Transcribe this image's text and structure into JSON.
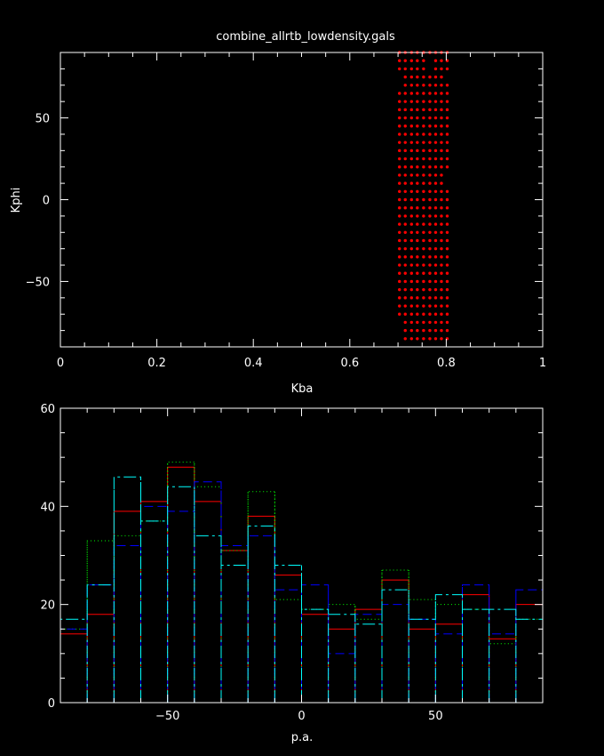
{
  "title": "combine_allrtb_lowdensity.gals",
  "chart_data": [
    {
      "type": "scatter",
      "xlabel": "Kba",
      "ylabel": "Kphi",
      "xlim": [
        0,
        1
      ],
      "ylim": [
        -90,
        90
      ],
      "xticks": [
        0,
        0.2,
        0.4,
        0.6,
        0.8,
        1
      ],
      "xtick_labels": [
        "0",
        "0.2",
        "0.4",
        "0.6",
        "0.8",
        "1"
      ],
      "yticks": [
        -50,
        0,
        50
      ],
      "ytick_labels": [
        "−50",
        "0",
        "50"
      ],
      "marker_color": "#ff0000",
      "columns": [
        {
          "x": 0.703,
          "y": [
            90,
            85,
            80,
            65,
            60,
            55,
            50,
            45,
            40,
            35,
            30,
            25,
            20,
            15,
            10,
            5,
            0,
            -5,
            -10,
            -15,
            -20,
            -25,
            -30,
            -35,
            -40,
            -45,
            -50,
            -55,
            -60,
            -65,
            -70
          ]
        },
        {
          "x": 0.715,
          "y": [
            90,
            85,
            80,
            75,
            70,
            65,
            60,
            55,
            50,
            45,
            40,
            35,
            30,
            25,
            20,
            15,
            10,
            5,
            0,
            -5,
            -10,
            -15,
            -20,
            -25,
            -30,
            -35,
            -40,
            -45,
            -50,
            -55,
            -60,
            -65,
            -70,
            -75,
            -80,
            -85
          ]
        },
        {
          "x": 0.728,
          "y": [
            90,
            85,
            80,
            75,
            70,
            65,
            60,
            55,
            50,
            45,
            40,
            35,
            30,
            25,
            20,
            15,
            10,
            5,
            0,
            -5,
            -10,
            -15,
            -20,
            -25,
            -30,
            -35,
            -40,
            -45,
            -50,
            -55,
            -60,
            -65,
            -70,
            -75,
            -80,
            -85
          ]
        },
        {
          "x": 0.74,
          "y": [
            90,
            85,
            80,
            75,
            70,
            65,
            60,
            55,
            50,
            45,
            40,
            35,
            30,
            25,
            20,
            15,
            10,
            5,
            0,
            -5,
            -10,
            -15,
            -20,
            -25,
            -30,
            -35,
            -40,
            -45,
            -50,
            -55,
            -60,
            -65,
            -70,
            -75,
            -80,
            -85
          ]
        },
        {
          "x": 0.753,
          "y": [
            90,
            85,
            80,
            75,
            70,
            65,
            60,
            55,
            50,
            45,
            40,
            35,
            30,
            25,
            20,
            15,
            10,
            5,
            0,
            -5,
            -10,
            -15,
            -20,
            -25,
            -30,
            -35,
            -40,
            -45,
            -50,
            -55,
            -60,
            -65,
            -70,
            -75,
            -80,
            -85
          ]
        },
        {
          "x": 0.766,
          "y": [
            90,
            75,
            70,
            65,
            60,
            55,
            50,
            45,
            40,
            35,
            30,
            25,
            20,
            15,
            10,
            5,
            0,
            -5,
            -10,
            -15,
            -20,
            -25,
            -30,
            -35,
            -40,
            -45,
            -50,
            -55,
            -60,
            -65,
            -70,
            -75,
            -80,
            -85
          ]
        },
        {
          "x": 0.778,
          "y": [
            90,
            85,
            80,
            75,
            70,
            65,
            60,
            55,
            50,
            45,
            40,
            35,
            30,
            25,
            20,
            15,
            10,
            5,
            0,
            -5,
            -10,
            -15,
            -20,
            -25,
            -30,
            -35,
            -40,
            -45,
            -50,
            -55,
            -60,
            -65,
            -70,
            -75,
            -80,
            -85
          ]
        },
        {
          "x": 0.79,
          "y": [
            90,
            85,
            80,
            75,
            70,
            65,
            60,
            55,
            50,
            45,
            40,
            35,
            30,
            25,
            20,
            15,
            10,
            5,
            0,
            -5,
            -10,
            -15,
            -20,
            -25,
            -30,
            -35,
            -40,
            -45,
            -50,
            -55,
            -60,
            -65,
            -70,
            -75,
            -80,
            -85
          ]
        },
        {
          "x": 0.802,
          "y": [
            90,
            85,
            80,
            70,
            65,
            60,
            55,
            50,
            45,
            40,
            35,
            30,
            25,
            20,
            5,
            0,
            -5,
            -10,
            -15,
            -20,
            -25,
            -30,
            -35,
            -40,
            -45,
            -50,
            -55,
            -60,
            -65,
            -70,
            -75,
            -80,
            -85
          ]
        }
      ]
    },
    {
      "type": "histogram",
      "xlabel": "p.a.",
      "ylabel": "",
      "xlim": [
        -90,
        90
      ],
      "ylim": [
        0,
        60
      ],
      "xticks": [
        -50,
        0,
        50
      ],
      "xtick_labels": [
        "−50",
        "0",
        "50"
      ],
      "yticks": [
        0,
        20,
        40,
        60
      ],
      "ytick_labels": [
        "0",
        "20",
        "40",
        "60"
      ],
      "bin_edges": [
        -90,
        -80,
        -70,
        -60,
        -50,
        -40,
        -30,
        -20,
        -10,
        0,
        10,
        20,
        30,
        40,
        50,
        60,
        70,
        80,
        90
      ],
      "series": [
        {
          "color": "#ff0000",
          "dash": "",
          "values": [
            14,
            18,
            39,
            41,
            48,
            41,
            31,
            38,
            26,
            18,
            15,
            19,
            25,
            15,
            16,
            22,
            13,
            20
          ]
        },
        {
          "color": "#00ff00",
          "dash": "1 3",
          "values": [
            15,
            33,
            34,
            37,
            49,
            44,
            31,
            43,
            21,
            19,
            20,
            17,
            27,
            21,
            20,
            19,
            12,
            17
          ]
        },
        {
          "color": "#0000ff",
          "dash": "10 5",
          "values": [
            15,
            24,
            32,
            40,
            39,
            45,
            32,
            34,
            23,
            24,
            10,
            18,
            20,
            17,
            14,
            24,
            14,
            23
          ]
        },
        {
          "color": "#00ffff",
          "dash": "14 4 3 4",
          "values": [
            17,
            24,
            46,
            37,
            44,
            34,
            28,
            36,
            28,
            19,
            18,
            16,
            23,
            17,
            22,
            19,
            19,
            17
          ]
        }
      ]
    }
  ]
}
